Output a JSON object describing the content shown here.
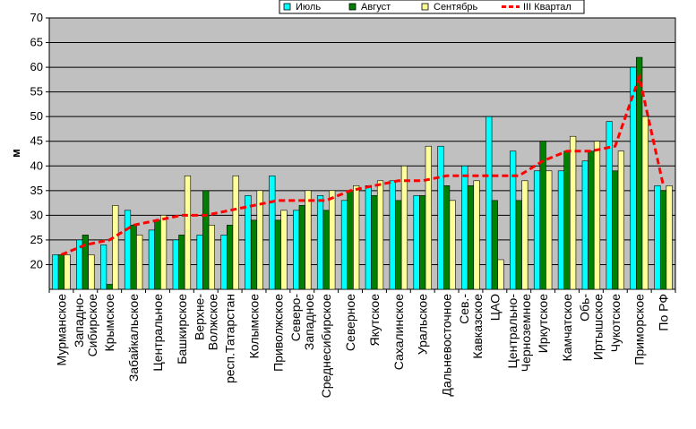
{
  "chart_data": {
    "type": "bar",
    "ylabel": "м",
    "ylim": [
      15,
      70
    ],
    "yticks": [
      20,
      25,
      30,
      35,
      40,
      45,
      50,
      55,
      60,
      65,
      70
    ],
    "grid": true,
    "legend_position": "top-right",
    "background": "#c0c0c0",
    "categories": [
      [
        "Мурманское"
      ],
      [
        "Западно-",
        "Сибирское"
      ],
      [
        "Крымское"
      ],
      [
        "Забайкальское"
      ],
      [
        "Центральное"
      ],
      [
        "Башкирское"
      ],
      [
        "Верхне-",
        "Волжское"
      ],
      [
        "респ.Татарстан"
      ],
      [
        "Колымское"
      ],
      [
        "Приволжское"
      ],
      [
        "Северо-",
        "Западное"
      ],
      [
        "Среднесибирское"
      ],
      [
        "Северное"
      ],
      [
        "Якутское"
      ],
      [
        "Сахалинское"
      ],
      [
        "Уральское"
      ],
      [
        "Дальневосточное"
      ],
      [
        "Сев.-",
        "Кавказское"
      ],
      [
        "ЦАО"
      ],
      [
        "Центрально-",
        "Черноземное"
      ],
      [
        "Иркутское"
      ],
      [
        "Камчатское"
      ],
      [
        "Обь-",
        "Иртышское"
      ],
      [
        "Чукотское"
      ],
      [
        "Приморское"
      ],
      [
        "По РФ"
      ]
    ],
    "series": [
      {
        "name": "Июль",
        "type": "bar",
        "color": "#00ffff",
        "values": [
          22,
          25,
          24,
          31,
          27,
          25,
          26,
          26,
          34,
          38,
          31,
          34,
          33,
          36,
          37,
          34,
          44,
          40,
          50,
          43,
          39,
          39,
          41,
          49,
          60,
          36
        ]
      },
      {
        "name": "Август",
        "type": "bar",
        "color": "#008000",
        "values": [
          22,
          26,
          16,
          28,
          29,
          26,
          35,
          28,
          29,
          29,
          32,
          31,
          35,
          34,
          33,
          34,
          36,
          36,
          33,
          33,
          45,
          43,
          43,
          39,
          62,
          35
        ]
      },
      {
        "name": "Сентябрь",
        "type": "bar",
        "color": "#ffff99",
        "values": [
          22,
          22,
          32,
          26,
          30,
          38,
          28,
          38,
          35,
          31,
          35,
          35,
          36,
          37,
          40,
          44,
          33,
          37,
          21,
          37,
          39,
          46,
          45,
          43,
          50,
          36
        ]
      },
      {
        "name": "III Квартал",
        "type": "line",
        "color": "#ff0000",
        "values": [
          22,
          24,
          25,
          28,
          29,
          30,
          30,
          31,
          32,
          33,
          33,
          33,
          35,
          36,
          37,
          37,
          38,
          38,
          38,
          38,
          41,
          43,
          43,
          44,
          58,
          36
        ]
      }
    ]
  }
}
